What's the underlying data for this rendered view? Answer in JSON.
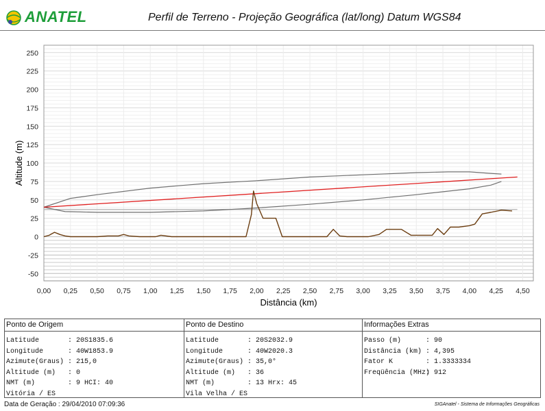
{
  "header": {
    "logo_text": "ANATEL",
    "title": "Perfil de Terreno - Projeção Geográfica (lat/long) Datum WGS84"
  },
  "colors": {
    "earth": "#6b3d10",
    "link": "#e02020",
    "fresnel": "#707070",
    "grid_light": "#e2e2e2",
    "grid_dark": "#c8c8c8",
    "earth_line": "#b8b8b8",
    "logo_green": "#1e9e3a",
    "logo_yellow": "#f2c500"
  },
  "chart_data": {
    "type": "line",
    "xlabel": "Distância (km)",
    "ylabel": "Altitude (m)",
    "xlim": [
      0,
      4.6
    ],
    "ylim": [
      -60,
      260
    ],
    "x_ticks": [
      "0,00",
      "0,25",
      "0,50",
      "0,75",
      "1,00",
      "1,25",
      "1,50",
      "1,75",
      "2,00",
      "2,25",
      "2,50",
      "2,75",
      "3,00",
      "3,25",
      "3,50",
      "3,75",
      "4,00",
      "4,25",
      "4,50"
    ],
    "y_ticks": [
      "250",
      "225",
      "200",
      "175",
      "150",
      "125",
      "100",
      "75",
      "50",
      "25",
      "0",
      "-25",
      "-50"
    ],
    "series": [
      {
        "role": "terrain",
        "x": [
          0.0,
          0.05,
          0.1,
          0.15,
          0.2,
          0.25,
          0.3,
          0.4,
          0.5,
          0.6,
          0.7,
          0.75,
          0.8,
          0.9,
          1.0,
          1.05,
          1.1,
          1.2,
          1.4,
          1.6,
          1.8,
          1.9,
          1.95,
          1.97,
          2.0,
          2.06,
          2.12,
          2.18,
          2.24,
          2.3,
          2.4,
          2.5,
          2.6,
          2.66,
          2.72,
          2.78,
          2.85,
          2.95,
          3.05,
          3.15,
          3.22,
          3.3,
          3.36,
          3.45,
          3.55,
          3.65,
          3.7,
          3.76,
          3.82,
          3.9,
          4.0,
          4.05,
          4.12,
          4.2,
          4.3,
          4.4
        ],
        "y": [
          0,
          2,
          6,
          3,
          1,
          0,
          0,
          0,
          0,
          1,
          1,
          3,
          1,
          0,
          0,
          0,
          2,
          0,
          0,
          0,
          0,
          0,
          30,
          62,
          45,
          25,
          25,
          25,
          0,
          0,
          0,
          0,
          0,
          0,
          10,
          1,
          0,
          0,
          0,
          3,
          10,
          10,
          10,
          2,
          2,
          2,
          11,
          3,
          13,
          13,
          15,
          17,
          31,
          33,
          36,
          35
        ]
      },
      {
        "role": "link",
        "x": [
          0.0,
          4.45
        ],
        "y": [
          40,
          81
        ]
      },
      {
        "role": "fresnel-upper",
        "x": [
          0.0,
          0.25,
          0.5,
          1.0,
          1.5,
          2.0,
          2.5,
          3.0,
          3.5,
          3.8,
          4.0,
          4.2,
          4.3
        ],
        "y": [
          40,
          52,
          57,
          66,
          72,
          76,
          81,
          84,
          87,
          88,
          88,
          86,
          85
        ]
      },
      {
        "role": "fresnel-lower",
        "x": [
          0.0,
          0.2,
          0.5,
          1.0,
          1.5,
          2.0,
          2.5,
          3.0,
          3.5,
          4.0,
          4.2,
          4.3
        ],
        "y": [
          40,
          34,
          33,
          33,
          35,
          39,
          44,
          50,
          57,
          65,
          70,
          75
        ]
      },
      {
        "role": "earth-curvature",
        "x": [
          0.0,
          4.45
        ],
        "y": [
          37,
          37
        ]
      }
    ]
  },
  "info": {
    "origin": {
      "header": "Ponto de Origem",
      "rows": [
        {
          "k": "Latitude",
          "v": ": 20S1835.6"
        },
        {
          "k": "Longitude",
          "v": ": 40W1853.9"
        },
        {
          "k": "Azimute(Graus)",
          "v": ": 215,0"
        },
        {
          "k": "Altitude (m)",
          "v": ": 0"
        },
        {
          "k": "NMT (m)",
          "v": ": 9 HCI: 40"
        }
      ],
      "place": "Vitória / ES"
    },
    "destination": {
      "header": "Ponto de Destino",
      "rows": [
        {
          "k": "Latitude",
          "v": ": 20S2032.9"
        },
        {
          "k": "Longitude",
          "v": ": 40W2020.3"
        },
        {
          "k": "Azimute(Graus)",
          "v": ": 35,0°"
        },
        {
          "k": "Altitude (m)",
          "v": ": 36"
        },
        {
          "k": "NMT (m)",
          "v": ": 13 Hrx: 45"
        }
      ],
      "place": "Vila Velha / ES"
    },
    "extra": {
      "header": "Informações Extras",
      "rows": [
        {
          "k": "Passo (m)",
          "v": ": 90"
        },
        {
          "k": "Distância (km)",
          "v": ": 4,395"
        },
        {
          "k": "Fator K",
          "v": ": 1.3333334"
        },
        {
          "k": "Freqüência (MHz)",
          "v": ": 912"
        }
      ]
    }
  },
  "footer": {
    "generated": "Data de Geração : 29/04/2010 07:09:36",
    "system": "SIGAnatel - Sistema de Informações Geográficas"
  }
}
